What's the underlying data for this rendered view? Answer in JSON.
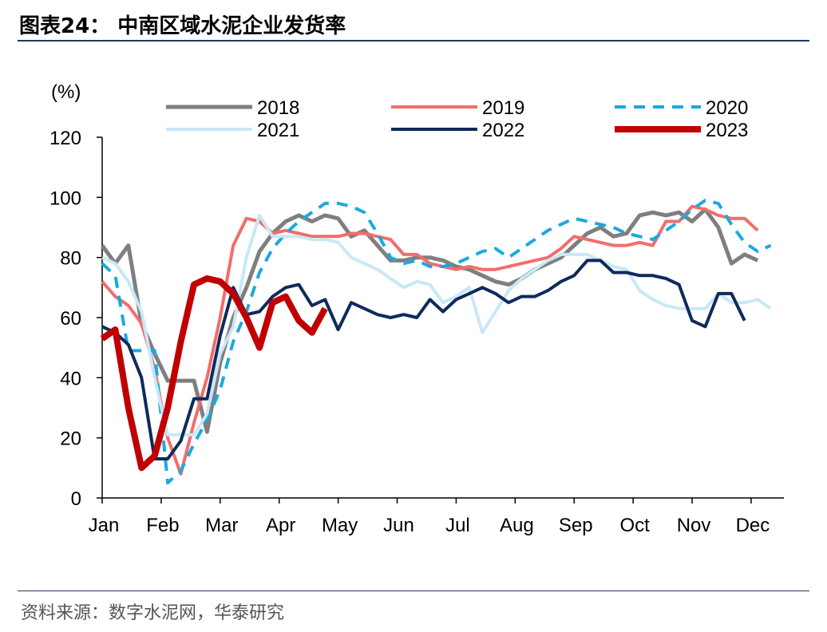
{
  "header": {
    "title": "图表24：  中南区域水泥企业发货率"
  },
  "footer": {
    "source": "资料来源：数字水泥网，华泰研究"
  },
  "chart_data": {
    "type": "line",
    "unit_label": "(%)",
    "ylim": [
      0,
      120
    ],
    "yticks": [
      0,
      20,
      40,
      60,
      80,
      100,
      120
    ],
    "x_range_weeks": [
      0,
      52
    ],
    "month_labels": [
      "Jan",
      "Feb",
      "Mar",
      "Apr",
      "May",
      "Jun",
      "Jul",
      "Aug",
      "Sep",
      "Oct",
      "Nov",
      "Dec"
    ],
    "month_ticks": [
      0,
      4.5,
      9,
      13.5,
      18,
      22.5,
      27,
      31.5,
      36,
      40.5,
      45,
      49.5
    ],
    "series": [
      {
        "name": "2018",
        "color": "#7f7f7f",
        "width": 5,
        "dash": "",
        "x": [
          0,
          1,
          2,
          3,
          4,
          5,
          6,
          7,
          8,
          9,
          10,
          11,
          12,
          13,
          14,
          15,
          16,
          17,
          18,
          19,
          20,
          21,
          22,
          23,
          24,
          25,
          26,
          27,
          28,
          29,
          30,
          31,
          32,
          33,
          34,
          35,
          36,
          37,
          38,
          39,
          40,
          41,
          42,
          43,
          44,
          45,
          46,
          47,
          48,
          49,
          50,
          51,
          52
        ],
        "values": [
          84,
          78,
          84,
          58,
          48,
          39,
          39,
          39,
          22,
          45,
          60,
          70,
          82,
          88,
          92,
          94,
          92,
          94,
          93,
          87,
          89,
          84,
          79,
          79,
          80,
          80,
          79,
          77,
          76,
          74,
          72,
          71,
          73,
          76,
          78,
          80,
          84,
          88,
          90,
          87,
          88,
          94,
          95,
          94,
          95,
          92,
          96,
          90,
          78,
          81,
          79,
          null,
          null
        ]
      },
      {
        "name": "2019",
        "color": "#f26d6b",
        "width": 4,
        "dash": "",
        "x": [
          0,
          1,
          2,
          3,
          4,
          5,
          6,
          7,
          8,
          9,
          10,
          11,
          12,
          13,
          14,
          15,
          16,
          17,
          18,
          19,
          20,
          21,
          22,
          23,
          24,
          25,
          26,
          27,
          28,
          29,
          30,
          31,
          32,
          33,
          34,
          35,
          36,
          37,
          38,
          39,
          40,
          41,
          42,
          43,
          44,
          45,
          46,
          47,
          48,
          49,
          50,
          51,
          52
        ],
        "values": [
          72,
          67,
          64,
          58,
          43,
          20,
          8,
          25,
          40,
          60,
          84,
          93,
          92,
          88,
          89,
          88,
          87,
          87,
          87,
          88,
          88,
          87,
          86,
          81,
          81,
          78,
          77,
          76,
          77,
          76,
          76,
          77,
          78,
          79,
          80,
          83,
          87,
          86,
          85,
          84,
          84,
          85,
          84,
          92,
          92,
          97,
          96,
          94,
          93,
          93,
          89,
          null,
          null
        ]
      },
      {
        "name": "2020",
        "color": "#1aa9e0",
        "width": 4,
        "dash": "14 10",
        "x": [
          0,
          1,
          2,
          3,
          4,
          5,
          6,
          7,
          8,
          9,
          10,
          11,
          12,
          13,
          14,
          15,
          16,
          17,
          18,
          19,
          20,
          21,
          22,
          23,
          24,
          25,
          26,
          27,
          28,
          29,
          30,
          31,
          32,
          33,
          34,
          35,
          36,
          37,
          38,
          39,
          40,
          41,
          42,
          43,
          44,
          45,
          46,
          47,
          48,
          49,
          50,
          51,
          52
        ],
        "values": [
          78,
          74,
          49,
          49,
          49,
          5,
          9,
          18,
          26,
          36,
          52,
          62,
          75,
          83,
          88,
          92,
          95,
          98,
          98,
          97,
          95,
          88,
          80,
          78,
          79,
          77,
          77,
          78,
          80,
          82,
          83,
          80,
          83,
          86,
          89,
          91,
          93,
          92,
          91,
          90,
          88,
          87,
          86,
          89,
          92,
          96,
          99,
          98,
          91,
          85,
          82,
          84,
          null
        ]
      },
      {
        "name": "2021",
        "color": "#c9e8f7",
        "width": 4,
        "dash": "",
        "x": [
          0,
          1,
          2,
          3,
          4,
          5,
          6,
          7,
          8,
          9,
          10,
          11,
          12,
          13,
          14,
          15,
          16,
          17,
          18,
          19,
          20,
          21,
          22,
          23,
          24,
          25,
          26,
          27,
          28,
          29,
          30,
          31,
          32,
          33,
          34,
          35,
          36,
          37,
          38,
          39,
          40,
          41,
          42,
          43,
          44,
          45,
          46,
          47,
          48,
          49,
          50,
          51,
          52
        ],
        "values": [
          80,
          78,
          72,
          62,
          40,
          21,
          21,
          21,
          28,
          48,
          57,
          80,
          94,
          87,
          87,
          87,
          86,
          86,
          85,
          80,
          78,
          76,
          73,
          70,
          72,
          71,
          65,
          67,
          70,
          55,
          62,
          69,
          73,
          76,
          79,
          81,
          81,
          81,
          79,
          77,
          76,
          69,
          66,
          64,
          63,
          63,
          63,
          68,
          65,
          65,
          66,
          63,
          null
        ]
      },
      {
        "name": "2022",
        "color": "#0f2a5c",
        "width": 4,
        "dash": "",
        "x": [
          0,
          1,
          2,
          3,
          4,
          5,
          6,
          7,
          8,
          9,
          10,
          11,
          12,
          13,
          14,
          15,
          16,
          17,
          18,
          19,
          20,
          21,
          22,
          23,
          24,
          25,
          26,
          27,
          28,
          29,
          30,
          31,
          32,
          33,
          34,
          35,
          36,
          37,
          38,
          39,
          40,
          41,
          42,
          43,
          44,
          45,
          46,
          47,
          48,
          49,
          50,
          51,
          52
        ],
        "values": [
          57,
          55,
          51,
          40,
          13,
          13,
          19,
          33,
          33,
          54,
          70,
          61,
          62,
          67,
          70,
          71,
          64,
          66,
          56,
          65,
          63,
          61,
          60,
          61,
          60,
          66,
          62,
          66,
          68,
          70,
          68,
          65,
          67,
          67,
          69,
          72,
          74,
          79,
          79,
          75,
          75,
          74,
          74,
          73,
          71,
          59,
          57,
          68,
          68,
          59,
          null,
          null,
          null
        ]
      },
      {
        "name": "2023",
        "color": "#c00000",
        "width": 8,
        "dash": "",
        "x": [
          0,
          1,
          2,
          3,
          4,
          5,
          6,
          7,
          8,
          9,
          10,
          11,
          12,
          13,
          14,
          15,
          16,
          17,
          18,
          19,
          20,
          21,
          22,
          23,
          24,
          25,
          26,
          27,
          28,
          29,
          30,
          31,
          32,
          33,
          34,
          35,
          36,
          37,
          38,
          39,
          40,
          41,
          42,
          43,
          44,
          45,
          46,
          47,
          48,
          49,
          50,
          51,
          52
        ],
        "values": [
          53,
          56,
          30,
          10,
          14,
          30,
          52,
          71,
          73,
          72,
          68,
          60,
          50,
          65,
          67,
          59,
          55,
          63,
          null,
          null,
          null,
          null,
          null,
          null,
          null,
          null,
          null,
          null,
          null,
          null,
          null,
          null,
          null,
          null,
          null,
          null,
          null,
          null,
          null,
          null,
          null,
          null,
          null,
          null,
          null,
          null,
          null,
          null,
          null,
          null,
          null,
          null,
          null
        ]
      }
    ]
  }
}
